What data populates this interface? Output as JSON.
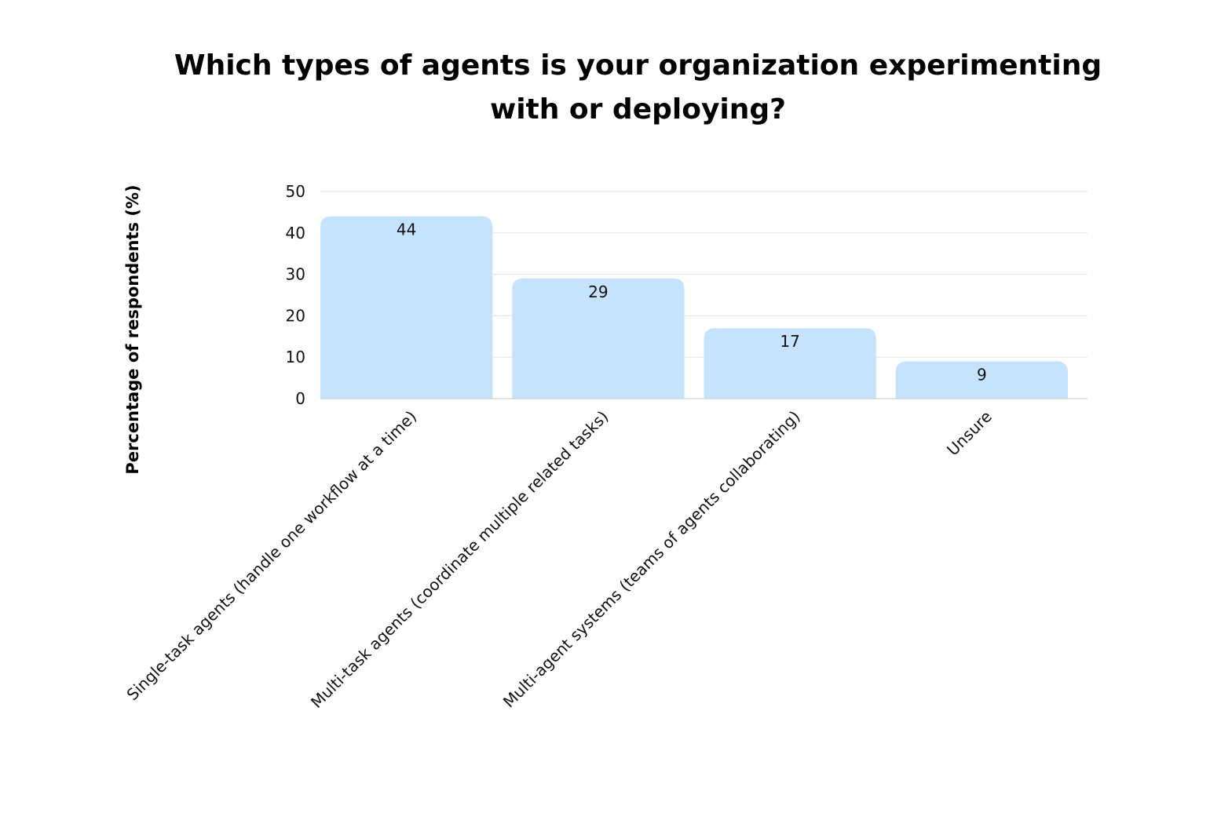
{
  "chart_data": {
    "type": "bar",
    "title": "Which types of agents is your organization experimenting with or deploying?",
    "title_lines": [
      "Which types of agents is your organization experimenting",
      "with or deploying?"
    ],
    "xlabel": "",
    "ylabel": "Percentage of respondents (%)",
    "categories": [
      "Single-task agents (handle one workflow at a time)",
      "Multi-task agents (coordinate multiple related tasks)",
      "Multi-agent systems (teams of agents collaborating)",
      "Unsure"
    ],
    "values": [
      44,
      29,
      17,
      9
    ],
    "ylim": [
      0,
      50
    ],
    "yticks": [
      0,
      10,
      20,
      30,
      40,
      50
    ],
    "grid": true,
    "bar_color": "#c6e3fd",
    "grid_color": "#e3e3e3"
  }
}
